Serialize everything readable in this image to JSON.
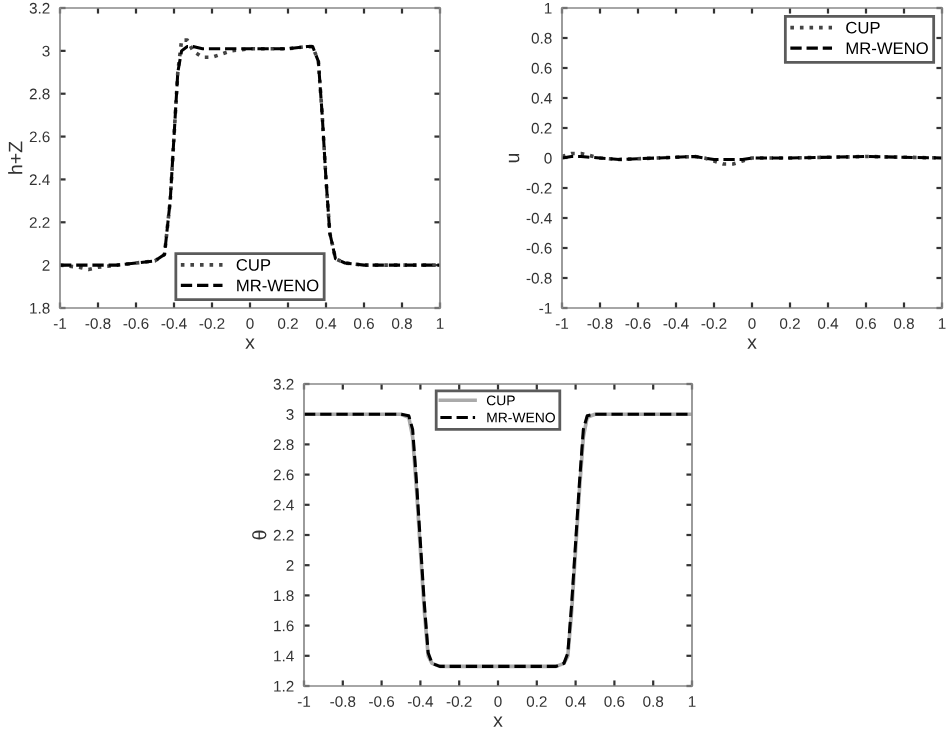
{
  "chart_data": [
    {
      "type": "line",
      "xlabel": "x",
      "ylabel": "h+Z",
      "xlim": [
        -1,
        1
      ],
      "ylim": [
        1.8,
        3.2
      ],
      "xticks": [
        -1,
        -0.8,
        -0.6,
        -0.4,
        -0.2,
        0,
        0.2,
        0.4,
        0.6,
        0.8,
        1
      ],
      "yticks": [
        1.8,
        2,
        2.2,
        2.4,
        2.6,
        2.8,
        3,
        3.2
      ],
      "legend": "bottom",
      "grid": false,
      "x": [
        -1,
        -0.9,
        -0.85,
        -0.8,
        -0.7,
        -0.6,
        -0.5,
        -0.45,
        -0.42,
        -0.4,
        -0.38,
        -0.36,
        -0.33,
        -0.3,
        -0.25,
        -0.2,
        -0.1,
        0,
        0.1,
        0.2,
        0.3,
        0.33,
        0.36,
        0.38,
        0.4,
        0.42,
        0.45,
        0.5,
        0.6,
        0.8,
        1
      ],
      "series": [
        {
          "name": "CUP",
          "color": "#444444",
          "line_style": "dotted",
          "values": [
            2.0,
            1.99,
            1.98,
            1.99,
            2.0,
            2.01,
            2.02,
            2.05,
            2.3,
            2.6,
            2.9,
            3.05,
            3.05,
            3.0,
            2.97,
            2.97,
            3.0,
            3.01,
            3.01,
            3.01,
            3.02,
            3.02,
            2.95,
            2.7,
            2.4,
            2.15,
            2.03,
            2.01,
            2.0,
            2.0,
            2.0
          ]
        },
        {
          "name": "MR-WENO",
          "color": "#000000",
          "line_style": "dashed",
          "values": [
            2.0,
            2.0,
            2.0,
            2.0,
            2.0,
            2.01,
            2.02,
            2.05,
            2.3,
            2.6,
            2.9,
            3.0,
            3.02,
            3.02,
            3.01,
            3.01,
            3.01,
            3.01,
            3.01,
            3.01,
            3.02,
            3.02,
            2.95,
            2.7,
            2.4,
            2.15,
            2.03,
            2.01,
            2.0,
            2.0,
            2.0
          ]
        }
      ]
    },
    {
      "type": "line",
      "xlabel": "x",
      "ylabel": "u",
      "xlim": [
        -1,
        1
      ],
      "ylim": [
        -1,
        1
      ],
      "xticks": [
        -1,
        -0.8,
        -0.6,
        -0.4,
        -0.2,
        0,
        0.2,
        0.4,
        0.6,
        0.8,
        1
      ],
      "yticks": [
        -1,
        -0.8,
        -0.6,
        -0.4,
        -0.2,
        0,
        0.2,
        0.4,
        0.6,
        0.8,
        1
      ],
      "legend": "top right",
      "grid": false,
      "x": [
        -1,
        -0.95,
        -0.9,
        -0.8,
        -0.7,
        -0.5,
        -0.3,
        -0.25,
        -0.2,
        -0.15,
        -0.1,
        -0.05,
        0,
        0.2,
        0.6,
        1
      ],
      "series": [
        {
          "name": "CUP",
          "color": "#444444",
          "line_style": "dotted",
          "values": [
            0.01,
            0.03,
            0.03,
            0.0,
            -0.01,
            0.0,
            0.01,
            0.0,
            -0.02,
            -0.04,
            -0.04,
            -0.02,
            0.0,
            0.0,
            0.01,
            0.0
          ]
        },
        {
          "name": "MR-WENO",
          "color": "#000000",
          "line_style": "dashed",
          "values": [
            0.0,
            0.01,
            0.01,
            0.0,
            -0.01,
            0.0,
            0.01,
            0.0,
            -0.01,
            -0.01,
            -0.01,
            -0.01,
            0.0,
            0.0,
            0.01,
            0.0
          ]
        }
      ]
    },
    {
      "type": "line",
      "xlabel": "x",
      "ylabel": "θ",
      "xlim": [
        -1,
        1
      ],
      "ylim": [
        1.2,
        3.2
      ],
      "xticks": [
        -1,
        -0.8,
        -0.6,
        -0.4,
        -0.2,
        0,
        0.2,
        0.4,
        0.6,
        0.8,
        1
      ],
      "yticks": [
        1.2,
        1.4,
        1.6,
        1.8,
        2,
        2.2,
        2.4,
        2.6,
        2.8,
        3,
        3.2
      ],
      "legend": "top",
      "grid": false,
      "x": [
        -1,
        -0.5,
        -0.46,
        -0.44,
        -0.42,
        -0.4,
        -0.38,
        -0.36,
        -0.34,
        -0.3,
        0,
        0.3,
        0.34,
        0.36,
        0.38,
        0.4,
        0.42,
        0.44,
        0.46,
        0.5,
        1
      ],
      "series": [
        {
          "name": "CUP",
          "color": "#aaaaaa",
          "line_style": "solid",
          "values": [
            3,
            3,
            2.98,
            2.85,
            2.5,
            2.1,
            1.7,
            1.4,
            1.35,
            1.33,
            1.33,
            1.33,
            1.35,
            1.4,
            1.7,
            2.1,
            2.5,
            2.85,
            2.98,
            3,
            3
          ]
        },
        {
          "name": "MR-WENO",
          "color": "#000000",
          "line_style": "dashed",
          "values": [
            3,
            3,
            2.99,
            2.9,
            2.55,
            2.15,
            1.75,
            1.42,
            1.35,
            1.33,
            1.33,
            1.33,
            1.35,
            1.42,
            1.75,
            2.15,
            2.55,
            2.9,
            2.99,
            3,
            3
          ]
        }
      ]
    }
  ]
}
